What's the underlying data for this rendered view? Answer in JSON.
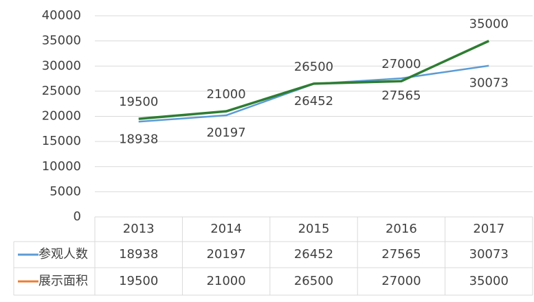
{
  "chart_data": {
    "type": "line",
    "categories": [
      "2013",
      "2014",
      "2015",
      "2016",
      "2017"
    ],
    "series": [
      {
        "name": "参观人数",
        "color": "#5b9bd5",
        "values": [
          18938,
          20197,
          26452,
          27565,
          30073
        ]
      },
      {
        "name": "展示面积",
        "color": "#2e7d32",
        "key_color": "#ed7d31",
        "values": [
          19500,
          21000,
          26500,
          27000,
          35000
        ]
      }
    ],
    "ylim": [
      0,
      40000
    ],
    "yticks": [
      0,
      5000,
      10000,
      15000,
      20000,
      25000,
      30000,
      35000,
      40000
    ],
    "grid": true,
    "data_labels": true,
    "data_table": true
  }
}
